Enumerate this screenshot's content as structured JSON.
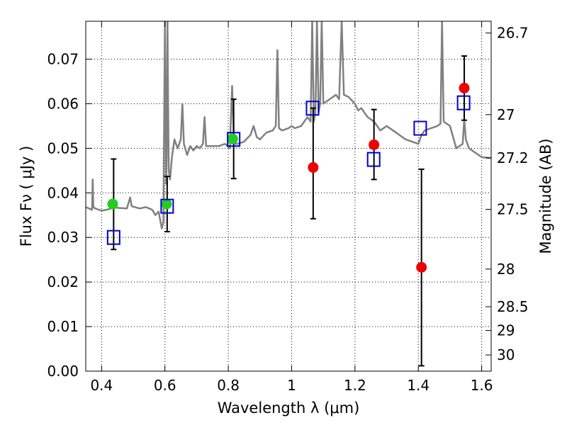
{
  "chart_data": {
    "type": "scatter",
    "title": "",
    "xlabel": "Wavelength  λ (μm)",
    "ylabel": "Flux  Fν  ( μJy )",
    "y2label": "Magnitude (AB)",
    "xlim": [
      0.35,
      1.63
    ],
    "ylim": [
      0.0,
      0.0785
    ],
    "grid": true,
    "x_ticks": [
      0.4,
      0.6,
      0.8,
      1.0,
      1.2,
      1.4,
      1.6
    ],
    "x_tick_labels": [
      "0.4",
      "0.6",
      "0.8",
      "1",
      "1.2",
      "1.4",
      "1.6"
    ],
    "y_ticks": [
      0.0,
      0.01,
      0.02,
      0.03,
      0.04,
      0.05,
      0.06,
      0.07
    ],
    "y_tick_labels": [
      "0.00",
      "0.01",
      "0.02",
      "0.03",
      "0.04",
      "0.05",
      "0.06",
      "0.07"
    ],
    "y2_ticks": [
      {
        "mag": 26.7,
        "label": "26.7"
      },
      {
        "mag": 27.0,
        "label": "27"
      },
      {
        "mag": 27.2,
        "label": "27.2"
      },
      {
        "mag": 27.5,
        "label": "27.5"
      },
      {
        "mag": 28.0,
        "label": "28"
      },
      {
        "mag": 28.5,
        "label": "28.5"
      },
      {
        "mag": 29.0,
        "label": "29"
      },
      {
        "mag": 30.0,
        "label": "30"
      }
    ],
    "series": [
      {
        "marker": "line",
        "color": "#808080",
        "points": [
          [
            0.35,
            0.0368
          ],
          [
            0.37,
            0.0362
          ],
          [
            0.372,
            0.043
          ],
          [
            0.374,
            0.0368
          ],
          [
            0.38,
            0.0365
          ],
          [
            0.4,
            0.036
          ],
          [
            0.42,
            0.0363
          ],
          [
            0.44,
            0.0367
          ],
          [
            0.46,
            0.0366
          ],
          [
            0.48,
            0.0365
          ],
          [
            0.49,
            0.039
          ],
          [
            0.495,
            0.037
          ],
          [
            0.52,
            0.0365
          ],
          [
            0.54,
            0.0368
          ],
          [
            0.56,
            0.0362
          ],
          [
            0.57,
            0.035
          ],
          [
            0.58,
            0.0358
          ],
          [
            0.59,
            0.032
          ],
          [
            0.595,
            0.0335
          ],
          [
            0.598,
            0.06
          ],
          [
            0.6,
            0.0785
          ],
          [
            0.602,
            0.06
          ],
          [
            0.604,
            0.042
          ],
          [
            0.606,
            0.052
          ],
          [
            0.608,
            0.0785
          ],
          [
            0.61,
            0.06
          ],
          [
            0.612,
            0.045
          ],
          [
            0.616,
            0.043
          ],
          [
            0.622,
            0.048
          ],
          [
            0.63,
            0.052
          ],
          [
            0.64,
            0.05
          ],
          [
            0.65,
            0.052
          ],
          [
            0.655,
            0.06
          ],
          [
            0.66,
            0.051
          ],
          [
            0.67,
            0.0485
          ],
          [
            0.68,
            0.0505
          ],
          [
            0.69,
            0.0495
          ],
          [
            0.7,
            0.0505
          ],
          [
            0.71,
            0.05
          ],
          [
            0.72,
            0.051
          ],
          [
            0.725,
            0.057
          ],
          [
            0.73,
            0.0505
          ],
          [
            0.75,
            0.0505
          ],
          [
            0.77,
            0.0505
          ],
          [
            0.79,
            0.051
          ],
          [
            0.805,
            0.05
          ],
          [
            0.812,
            0.064
          ],
          [
            0.818,
            0.051
          ],
          [
            0.83,
            0.051
          ],
          [
            0.85,
            0.0515
          ],
          [
            0.87,
            0.053
          ],
          [
            0.88,
            0.055
          ],
          [
            0.89,
            0.0525
          ],
          [
            0.9,
            0.052
          ],
          [
            0.92,
            0.0535
          ],
          [
            0.94,
            0.054
          ],
          [
            0.95,
            0.055
          ],
          [
            0.955,
            0.072
          ],
          [
            0.96,
            0.0545
          ],
          [
            0.97,
            0.054
          ],
          [
            0.99,
            0.0545
          ],
          [
            1.0,
            0.055
          ],
          [
            1.01,
            0.0545
          ],
          [
            1.03,
            0.055
          ],
          [
            1.05,
            0.057
          ],
          [
            1.06,
            0.056
          ],
          [
            1.065,
            0.0785
          ],
          [
            1.07,
            0.056
          ],
          [
            1.075,
            0.058
          ],
          [
            1.08,
            0.0785
          ],
          [
            1.085,
            0.058
          ],
          [
            1.09,
            0.06
          ],
          [
            1.095,
            0.0785
          ],
          [
            1.1,
            0.06
          ],
          [
            1.12,
            0.061
          ],
          [
            1.14,
            0.062
          ],
          [
            1.15,
            0.061
          ],
          [
            1.158,
            0.0785
          ],
          [
            1.165,
            0.062
          ],
          [
            1.18,
            0.0615
          ],
          [
            1.2,
            0.06
          ],
          [
            1.21,
            0.0585
          ],
          [
            1.22,
            0.059
          ],
          [
            1.24,
            0.057
          ],
          [
            1.26,
            0.056
          ],
          [
            1.28,
            0.054
          ],
          [
            1.3,
            0.055
          ],
          [
            1.32,
            0.054
          ],
          [
            1.34,
            0.053
          ],
          [
            1.36,
            0.052
          ],
          [
            1.38,
            0.0515
          ],
          [
            1.4,
            0.051
          ],
          [
            1.41,
            0.053
          ],
          [
            1.42,
            0.054
          ],
          [
            1.44,
            0.0545
          ],
          [
            1.46,
            0.055
          ],
          [
            1.47,
            0.0555
          ],
          [
            1.475,
            0.0785
          ],
          [
            1.48,
            0.056
          ],
          [
            1.5,
            0.055
          ],
          [
            1.52,
            0.05
          ],
          [
            1.54,
            0.051
          ],
          [
            1.545,
            0.0565
          ],
          [
            1.55,
            0.052
          ],
          [
            1.56,
            0.05
          ],
          [
            1.58,
            0.049
          ],
          [
            1.6,
            0.048
          ],
          [
            1.63,
            0.0478
          ]
        ]
      },
      {
        "marker": "circle",
        "color": "#22cc22",
        "points": [
          [
            0.435,
            0.0375
          ],
          [
            0.605,
            0.0375
          ],
          [
            0.814,
            0.0521
          ]
        ]
      },
      {
        "marker": "circle",
        "color": "#ee0000",
        "points": [
          [
            1.068,
            0.0457
          ],
          [
            1.26,
            0.0508
          ],
          [
            1.41,
            0.0233
          ],
          [
            1.545,
            0.0635
          ]
        ]
      },
      {
        "marker": "square",
        "color": "#0000cc",
        "points": [
          [
            0.438,
            0.03
          ],
          [
            0.607,
            0.037
          ],
          [
            0.817,
            0.052
          ],
          [
            1.066,
            0.059
          ],
          [
            1.259,
            0.0475
          ],
          [
            1.406,
            0.0545
          ],
          [
            1.543,
            0.0602
          ]
        ]
      },
      {
        "marker": "errorbar",
        "color": "#000000",
        "bars": [
          {
            "x": 0.438,
            "lo": 0.0273,
            "hi": 0.0476
          },
          {
            "x": 0.607,
            "lo": 0.0313,
            "hi": 0.0437
          },
          {
            "x": 0.817,
            "lo": 0.0432,
            "hi": 0.061
          },
          {
            "x": 1.068,
            "lo": 0.0342,
            "hi": 0.059
          },
          {
            "x": 1.26,
            "lo": 0.043,
            "hi": 0.0587
          },
          {
            "x": 1.41,
            "lo": 0.0012,
            "hi": 0.0453
          },
          {
            "x": 1.545,
            "lo": 0.0563,
            "hi": 0.0707
          }
        ]
      }
    ]
  }
}
